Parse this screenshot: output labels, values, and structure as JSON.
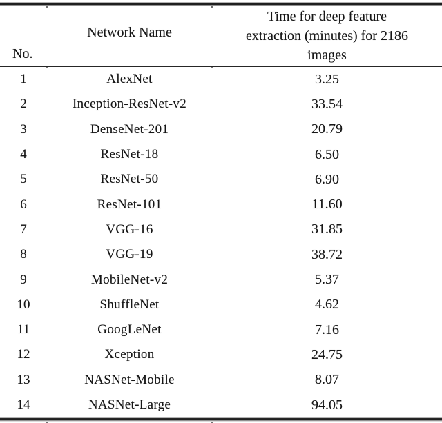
{
  "page": {
    "background": "#ffffff",
    "text_color": "#161616",
    "rule_color": "#1f1f1f"
  },
  "table": {
    "headers": {
      "no": "No.",
      "network": "Network Name",
      "time": "Time for deep feature\nextraction (minutes) for 2186\nimages"
    },
    "rows": [
      {
        "no": "1",
        "network": "AlexNet",
        "time": "3.25"
      },
      {
        "no": "2",
        "network": "Inception-ResNet-v2",
        "time": "33.54"
      },
      {
        "no": "3",
        "network": "DenseNet-201",
        "time": "20.79"
      },
      {
        "no": "4",
        "network": "ResNet-18",
        "time": "6.50"
      },
      {
        "no": "5",
        "network": "ResNet-50",
        "time": "6.90"
      },
      {
        "no": "6",
        "network": "ResNet-101",
        "time": "11.60"
      },
      {
        "no": "7",
        "network": "VGG-16",
        "time": "31.85"
      },
      {
        "no": "8",
        "network": "VGG-19",
        "time": "38.72"
      },
      {
        "no": "9",
        "network": "MobileNet-v2",
        "time": "5.37"
      },
      {
        "no": "10",
        "network": "ShuffleNet",
        "time": "4.62"
      },
      {
        "no": "11",
        "network": "GoogLeNet",
        "time": "7.16"
      },
      {
        "no": "12",
        "network": "Xception",
        "time": "24.75"
      },
      {
        "no": "13",
        "network": "NASNet-Mobile",
        "time": "8.07"
      },
      {
        "no": "14",
        "network": "NASNet-Large",
        "time": "94.05"
      }
    ]
  }
}
